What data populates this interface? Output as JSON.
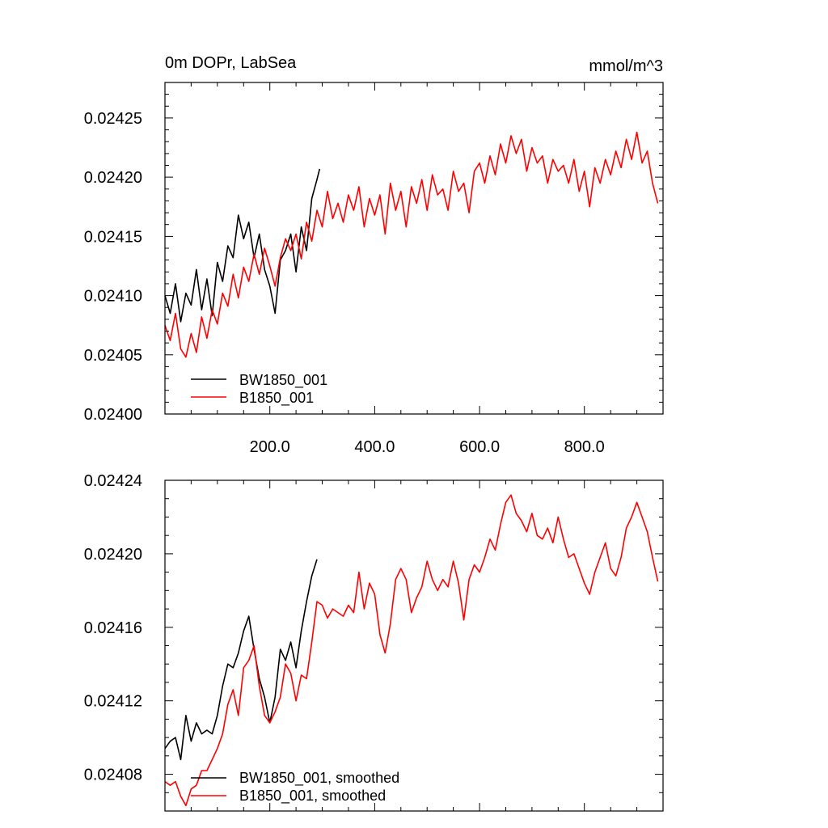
{
  "chart_data": [
    {
      "type": "line",
      "title_left": "0m DOPr, LabSea",
      "title_right": "mmol/m^3",
      "xlabel": "",
      "ylabel": "",
      "xlim": [
        0,
        950
      ],
      "ylim": [
        0.024,
        0.02428
      ],
      "x_ticks": [
        200,
        400,
        600,
        800
      ],
      "x_tick_labels": [
        "200.0",
        "400.0",
        "600.0",
        "800.0"
      ],
      "y_ticks": [
        0.024,
        0.02405,
        0.0241,
        0.02415,
        0.0242,
        0.02425
      ],
      "y_tick_labels": [
        "0.02400",
        "0.02405",
        "0.02410",
        "0.02415",
        "0.02420",
        "0.02425"
      ],
      "grid": false,
      "legend_position": "bottom-left",
      "series": [
        {
          "name": "BW1850_001",
          "color": "#000000",
          "x": [
            0,
            10,
            20,
            30,
            40,
            50,
            60,
            70,
            80,
            90,
            100,
            110,
            120,
            130,
            140,
            150,
            160,
            170,
            180,
            190,
            200,
            210,
            220,
            230,
            240,
            250,
            260,
            270,
            280,
            290,
            295
          ],
          "y": [
            0.0241,
            0.024085,
            0.02411,
            0.024078,
            0.024102,
            0.024092,
            0.024122,
            0.024088,
            0.024114,
            0.024083,
            0.024128,
            0.024112,
            0.024142,
            0.024132,
            0.024168,
            0.024148,
            0.024162,
            0.024132,
            0.024152,
            0.024122,
            0.024108,
            0.024085,
            0.02413,
            0.024138,
            0.024152,
            0.02412,
            0.024158,
            0.024138,
            0.024182,
            0.024198,
            0.024207
          ]
        },
        {
          "name": "B1850_001",
          "color": "#ff0000",
          "x": [
            0,
            10,
            20,
            30,
            40,
            50,
            60,
            70,
            80,
            90,
            100,
            110,
            120,
            130,
            140,
            150,
            160,
            170,
            180,
            190,
            200,
            210,
            220,
            230,
            240,
            250,
            260,
            270,
            280,
            290,
            300,
            310,
            320,
            330,
            340,
            350,
            360,
            370,
            380,
            390,
            400,
            410,
            420,
            430,
            440,
            450,
            460,
            470,
            480,
            490,
            500,
            510,
            520,
            530,
            540,
            550,
            560,
            570,
            580,
            590,
            600,
            610,
            620,
            630,
            640,
            650,
            660,
            670,
            680,
            690,
            700,
            710,
            720,
            730,
            740,
            750,
            760,
            770,
            780,
            790,
            800,
            810,
            820,
            830,
            840,
            850,
            860,
            870,
            880,
            890,
            900,
            910,
            920,
            930,
            940
          ],
          "y": [
            0.024075,
            0.024062,
            0.024085,
            0.024055,
            0.024048,
            0.024068,
            0.024052,
            0.024082,
            0.024064,
            0.024088,
            0.024076,
            0.024102,
            0.024091,
            0.024118,
            0.024098,
            0.024124,
            0.024112,
            0.024135,
            0.024118,
            0.02414,
            0.024125,
            0.024108,
            0.024132,
            0.024148,
            0.024138,
            0.024152,
            0.024131,
            0.024162,
            0.024146,
            0.024172,
            0.024158,
            0.024188,
            0.024165,
            0.024178,
            0.024162,
            0.024185,
            0.024172,
            0.024192,
            0.024158,
            0.024182,
            0.024168,
            0.024185,
            0.024152,
            0.024195,
            0.024172,
            0.024188,
            0.024158,
            0.024192,
            0.024178,
            0.024198,
            0.024172,
            0.024202,
            0.024185,
            0.02419,
            0.024172,
            0.024205,
            0.024188,
            0.024195,
            0.02417,
            0.024205,
            0.024212,
            0.024195,
            0.024218,
            0.024202,
            0.024228,
            0.024212,
            0.024235,
            0.02422,
            0.024232,
            0.024205,
            0.024225,
            0.024212,
            0.024218,
            0.024195,
            0.024215,
            0.024205,
            0.02421,
            0.024195,
            0.024215,
            0.024188,
            0.024205,
            0.024175,
            0.024208,
            0.024195,
            0.024215,
            0.024202,
            0.024222,
            0.024208,
            0.024232,
            0.024215,
            0.024238,
            0.024212,
            0.024222,
            0.024195,
            0.024178
          ]
        }
      ]
    },
    {
      "type": "line",
      "title": "",
      "xlabel": "",
      "ylabel": "",
      "xlim": [
        0,
        950
      ],
      "ylim": [
        0.02406,
        0.02424
      ],
      "x_ticks": [
        200,
        400,
        600,
        800
      ],
      "x_tick_labels": [],
      "y_ticks": [
        0.02408,
        0.02412,
        0.02416,
        0.0242,
        0.02424
      ],
      "y_tick_labels": [
        "0.02408",
        "0.02412",
        "0.02416",
        "0.02420",
        "0.02424"
      ],
      "grid": false,
      "legend_position": "bottom-left",
      "series": [
        {
          "name": "BW1850_001, smoothed",
          "color": "#000000",
          "x": [
            0,
            10,
            20,
            30,
            40,
            50,
            60,
            70,
            80,
            90,
            100,
            110,
            120,
            130,
            140,
            150,
            160,
            170,
            180,
            190,
            200,
            210,
            220,
            230,
            240,
            250,
            260,
            270,
            280,
            290
          ],
          "y": [
            0.024094,
            0.024098,
            0.0241,
            0.024088,
            0.024112,
            0.024098,
            0.024108,
            0.024102,
            0.024104,
            0.024102,
            0.024112,
            0.024128,
            0.02414,
            0.024138,
            0.024146,
            0.024158,
            0.024166,
            0.024148,
            0.024132,
            0.024122,
            0.024108,
            0.024122,
            0.024148,
            0.024142,
            0.024152,
            0.024138,
            0.024158,
            0.024174,
            0.024188,
            0.024197
          ]
        },
        {
          "name": "B1850_001, smoothed",
          "color": "#ff0000",
          "x": [
            0,
            10,
            20,
            30,
            40,
            50,
            60,
            70,
            80,
            90,
            100,
            110,
            120,
            130,
            140,
            150,
            160,
            170,
            180,
            190,
            200,
            210,
            220,
            230,
            240,
            250,
            260,
            270,
            280,
            290,
            300,
            310,
            320,
            330,
            340,
            350,
            360,
            370,
            380,
            390,
            400,
            410,
            420,
            430,
            440,
            450,
            460,
            470,
            480,
            490,
            500,
            510,
            520,
            530,
            540,
            550,
            560,
            570,
            580,
            590,
            600,
            610,
            620,
            630,
            640,
            650,
            660,
            670,
            680,
            690,
            700,
            710,
            720,
            730,
            740,
            750,
            760,
            770,
            780,
            790,
            800,
            810,
            820,
            830,
            840,
            850,
            860,
            870,
            880,
            890,
            900,
            910,
            920,
            930,
            940
          ],
          "y": [
            0.024076,
            0.024074,
            0.024076,
            0.024068,
            0.024063,
            0.024072,
            0.024074,
            0.024082,
            0.024082,
            0.024088,
            0.024094,
            0.024102,
            0.024118,
            0.024126,
            0.024112,
            0.024138,
            0.024142,
            0.02415,
            0.024128,
            0.024112,
            0.024108,
            0.024114,
            0.024122,
            0.02414,
            0.024135,
            0.02412,
            0.024134,
            0.024132,
            0.024152,
            0.024174,
            0.024172,
            0.024165,
            0.02417,
            0.024168,
            0.024166,
            0.024172,
            0.024168,
            0.02419,
            0.02417,
            0.024184,
            0.024178,
            0.024156,
            0.024146,
            0.024162,
            0.024186,
            0.024192,
            0.024186,
            0.024168,
            0.024176,
            0.024182,
            0.024196,
            0.024186,
            0.02418,
            0.024186,
            0.024182,
            0.024196,
            0.024184,
            0.024164,
            0.024186,
            0.024194,
            0.02419,
            0.024198,
            0.024208,
            0.024202,
            0.024216,
            0.024228,
            0.024232,
            0.024222,
            0.024218,
            0.024212,
            0.024222,
            0.02421,
            0.024208,
            0.024214,
            0.024206,
            0.02422,
            0.024208,
            0.024198,
            0.0242,
            0.024192,
            0.024184,
            0.024178,
            0.02419,
            0.024198,
            0.024206,
            0.024192,
            0.024188,
            0.024198,
            0.024214,
            0.02422,
            0.024228,
            0.02422,
            0.024212,
            0.024198,
            0.024185
          ]
        }
      ]
    }
  ]
}
